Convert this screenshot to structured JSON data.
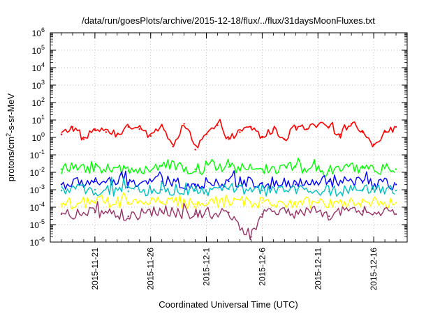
{
  "chart_data": {
    "type": "line",
    "title": "/data/run/goesPlots/archive/2015-12-18/flux/../flux/31daysMoonFluxes.txt",
    "xlabel": "Coordinated Universal Time (UTC)",
    "ylabel": {
      "base": "protons/cm",
      "sup": "2",
      "rest": "-s-sr-MeV"
    },
    "y_scale": "log",
    "ylim": [
      1e-06,
      1000000.0
    ],
    "y_ticks": [
      {
        "exp": "-6"
      },
      {
        "exp": "-5"
      },
      {
        "exp": "-4"
      },
      {
        "exp": "-3"
      },
      {
        "exp": "-2"
      },
      {
        "exp": "-1"
      },
      {
        "exp": "0"
      },
      {
        "exp": "1"
      },
      {
        "exp": "2"
      },
      {
        "exp": "3"
      },
      {
        "exp": "4"
      },
      {
        "exp": "5"
      },
      {
        "exp": "6"
      }
    ],
    "y_tick_base": "10",
    "xlim": [
      "2015-11-17",
      "2015-12-19"
    ],
    "x_ticks": [
      "2015-11-21",
      "2015-11-26",
      "2015-12-1",
      "2015-12-6",
      "2015-12-11",
      "2015-12-16"
    ],
    "grid": true,
    "legend": "none",
    "series": [
      {
        "color": "#ff0000",
        "x": [
          "2015-11-18",
          "2015-11-19",
          "2015-11-20",
          "2015-11-21",
          "2015-11-22",
          "2015-11-23",
          "2015-11-24",
          "2015-11-25",
          "2015-11-26",
          "2015-11-27",
          "2015-11-28",
          "2015-11-29",
          "2015-11-30",
          "2015-12-01",
          "2015-12-02",
          "2015-12-03",
          "2015-12-04",
          "2015-12-05",
          "2015-12-06",
          "2015-12-07",
          "2015-12-08",
          "2015-12-09",
          "2015-12-10",
          "2015-12-11",
          "2015-12-12",
          "2015-12-13",
          "2015-12-14",
          "2015-12-15",
          "2015-12-16",
          "2015-12-17",
          "2015-12-18"
        ],
        "y": [
          1.5,
          4,
          0.8,
          3,
          2,
          1.5,
          4,
          3,
          1.2,
          5,
          0.3,
          6,
          0.2,
          1.5,
          5,
          0.8,
          2,
          4,
          1,
          3,
          0.8,
          4,
          3,
          5,
          4,
          1.5,
          6,
          2,
          0.4,
          2,
          4
        ]
      },
      {
        "color": "#00ff00",
        "x": [
          "2015-11-18",
          "2015-11-21",
          "2015-11-24",
          "2015-11-27",
          "2015-11-30",
          "2015-12-03",
          "2015-12-06",
          "2015-12-09",
          "2015-12-12",
          "2015-12-15",
          "2015-12-18"
        ],
        "y": [
          0.015,
          0.02,
          0.012,
          0.025,
          0.015,
          0.02,
          0.015,
          0.02,
          0.012,
          0.018,
          0.015
        ]
      },
      {
        "color": "#0000ff",
        "x": [
          "2015-11-18",
          "2015-11-21",
          "2015-11-24",
          "2015-11-27",
          "2015-11-30",
          "2015-12-03",
          "2015-12-06",
          "2015-12-09",
          "2015-12-12",
          "2015-12-15",
          "2015-12-18"
        ],
        "y": [
          0.002,
          0.003,
          0.0025,
          0.003,
          0.002,
          0.003,
          0.0025,
          0.002,
          0.003,
          0.0025,
          0.002
        ]
      },
      {
        "color": "#00c0c0",
        "x": [
          "2015-11-18",
          "2015-11-21",
          "2015-11-24",
          "2015-11-27",
          "2015-11-30",
          "2015-12-03",
          "2015-12-06",
          "2015-12-09",
          "2015-12-12",
          "2015-12-15",
          "2015-12-18"
        ],
        "y": [
          0.0009,
          0.001,
          0.0008,
          0.001,
          0.0009,
          0.0011,
          0.0009,
          0.001,
          0.0008,
          0.001,
          0.0009
        ]
      },
      {
        "color": "#ffff00",
        "x": [
          "2015-11-18",
          "2015-11-21",
          "2015-11-24",
          "2015-11-27",
          "2015-11-30",
          "2015-12-03",
          "2015-12-06",
          "2015-12-09",
          "2015-12-12",
          "2015-12-15",
          "2015-12-18"
        ],
        "y": [
          0.00015,
          0.0002,
          0.00018,
          0.0002,
          0.00015,
          0.0002,
          0.00018,
          0.0002,
          0.00015,
          0.0002,
          0.00018
        ]
      },
      {
        "color": "#993366",
        "x": [
          "2015-11-18",
          "2015-11-21",
          "2015-11-24",
          "2015-11-27",
          "2015-11-30",
          "2015-12-03",
          "2015-12-05",
          "2015-12-06",
          "2015-12-09",
          "2015-12-12",
          "2015-12-15",
          "2015-12-18"
        ],
        "y": [
          4e-05,
          5e-05,
          3e-05,
          6e-05,
          4e-05,
          5e-05,
          2e-06,
          4e-05,
          5e-05,
          3e-05,
          6e-05,
          4e-05
        ]
      }
    ]
  }
}
